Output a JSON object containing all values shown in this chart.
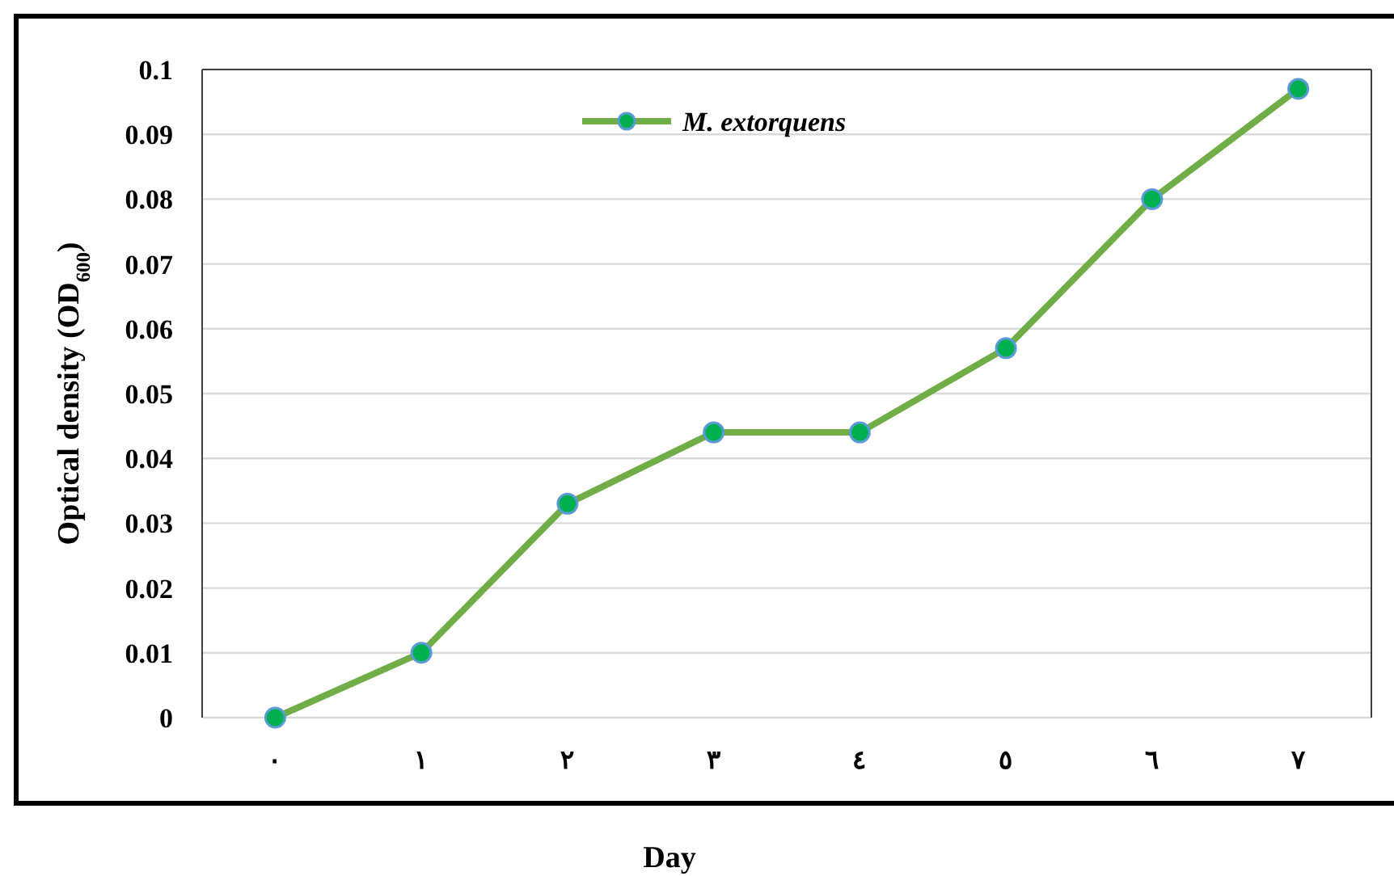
{
  "chart_data": {
    "type": "line",
    "xlabel": "Day",
    "ylabel": "Optical density (OD$_{600}$)",
    "categories": [
      "٠",
      "١",
      "٢",
      "٣",
      "٤",
      "٥",
      "٦",
      "٧"
    ],
    "series": [
      {
        "name": "M. extorquens",
        "color": "#70ad47",
        "values": [
          0,
          0.01,
          0.033,
          0.044,
          0.044,
          0.057,
          0.08,
          0.097
        ]
      }
    ],
    "ylim": [
      0,
      0.1
    ],
    "yticks": [
      0,
      0.01,
      0.02,
      0.03,
      0.04,
      0.05,
      0.06,
      0.07,
      0.08,
      0.09,
      0.1
    ],
    "grid": "y",
    "legend": "top",
    "marker": "circle",
    "line_style": "solid"
  }
}
